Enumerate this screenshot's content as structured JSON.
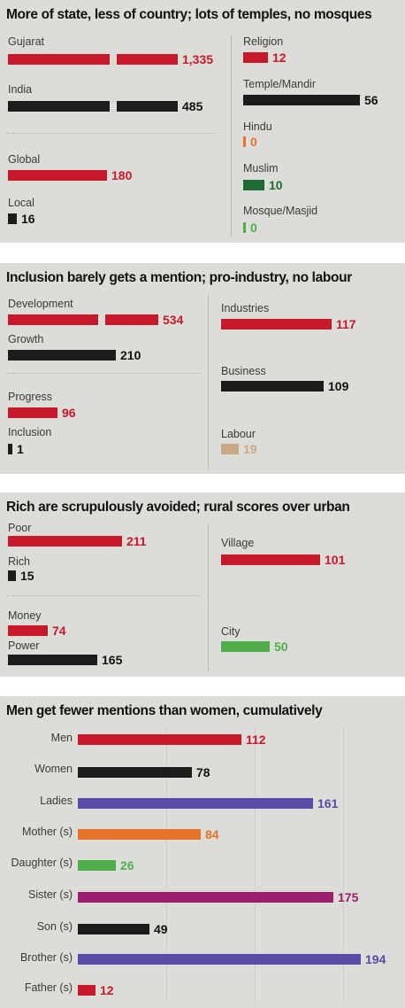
{
  "colors": {
    "red": "#c8182b",
    "black": "#1c1c1c",
    "orange": "#e9722b",
    "darkgreen": "#1f6b34",
    "green": "#4fae4b",
    "tan": "#c9a887",
    "purple": "#5b4aa6",
    "magenta": "#9c1f6e"
  },
  "chart_data": [
    {
      "type": "bar",
      "title": "More of state, less of country; lots of temples, no mosques",
      "columns": [
        {
          "items": [
            {
              "label": "Gujarat",
              "value": 1335,
              "display": "1,335",
              "color": "red",
              "broken": true
            },
            {
              "label": "India",
              "value": 485,
              "display": "485",
              "color": "black",
              "broken": true
            },
            {
              "label": "Global",
              "value": 180,
              "display": "180",
              "color": "red"
            },
            {
              "label": "Local",
              "value": 16,
              "display": "16",
              "color": "black"
            }
          ]
        },
        {
          "items": [
            {
              "label": "Religion",
              "value": 12,
              "display": "12",
              "color": "red"
            },
            {
              "label": "Temple/Mandir",
              "value": 56,
              "display": "56",
              "color": "black"
            },
            {
              "label": "Hindu",
              "value": 0,
              "display": "0",
              "color": "orange"
            },
            {
              "label": "Muslim",
              "value": 10,
              "display": "10",
              "color": "darkgreen"
            },
            {
              "label": "Mosque/Masjid",
              "value": 0,
              "display": "0",
              "color": "green"
            }
          ]
        }
      ]
    },
    {
      "type": "bar",
      "title": "Inclusion barely gets a mention; pro-industry, no labour",
      "columns": [
        {
          "items": [
            {
              "label": "Development",
              "value": 534,
              "display": "534",
              "color": "red",
              "broken": true
            },
            {
              "label": "Growth",
              "value": 210,
              "display": "210",
              "color": "black"
            },
            {
              "label": "Progress",
              "value": 96,
              "display": "96",
              "color": "red"
            },
            {
              "label": "Inclusion",
              "value": 1,
              "display": "1",
              "color": "black"
            }
          ]
        },
        {
          "items": [
            {
              "label": "Industries",
              "value": 117,
              "display": "117",
              "color": "red"
            },
            {
              "label": "Business",
              "value": 109,
              "display": "109",
              "color": "black"
            },
            {
              "label": "Labour",
              "value": 19,
              "display": "19",
              "color": "tan"
            }
          ]
        }
      ]
    },
    {
      "type": "bar",
      "title": "Rich are scrupulously avoided; rural scores over urban",
      "columns": [
        {
          "items": [
            {
              "label": "Poor",
              "value": 211,
              "display": "211",
              "color": "red"
            },
            {
              "label": "Rich",
              "value": 15,
              "display": "15",
              "color": "black"
            },
            {
              "label": "Money",
              "value": 74,
              "display": "74",
              "color": "red"
            },
            {
              "label": "Power",
              "value": 165,
              "display": "165",
              "color": "black"
            }
          ]
        },
        {
          "items": [
            {
              "label": "Village",
              "value": 101,
              "display": "101",
              "color": "red"
            },
            {
              "label": "City",
              "value": 50,
              "display": "50",
              "color": "green"
            }
          ]
        }
      ]
    },
    {
      "type": "bar",
      "title": "Men get fewer mentions than women, cumulatively",
      "categories": [
        "Men",
        "Women",
        "Ladies",
        "Mother (s)",
        "Daughter (s)",
        "Sister (s)",
        "Son (s)",
        "Brother (s)",
        "Father (s)"
      ],
      "values": [
        112,
        78,
        161,
        84,
        26,
        175,
        49,
        194,
        12
      ],
      "bar_colors": [
        "red",
        "black",
        "purple",
        "orange",
        "green",
        "magenta",
        "black",
        "purple",
        "red"
      ]
    }
  ]
}
